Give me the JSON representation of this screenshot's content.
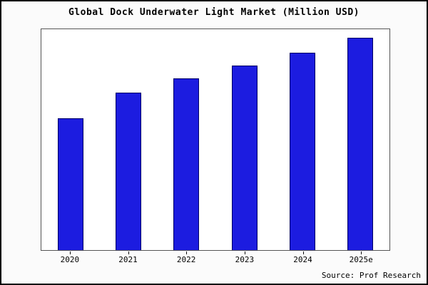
{
  "chart_data": {
    "type": "bar",
    "title": "Global Dock Underwater Light Market (Million USD)",
    "categories": [
      "2020",
      "2021",
      "2022",
      "2023",
      "2024",
      "2025e"
    ],
    "values": [
      62,
      74,
      81,
      87,
      93,
      100
    ],
    "ylim": [
      0,
      104
    ],
    "xlabel": "",
    "ylabel": "",
    "grid": false,
    "legend": false,
    "y_axis_tick_labels_visible": false
  },
  "source": "Source: Prof Research",
  "colors": {
    "bar_fill": "#1c1ce0",
    "bar_border": "#000066",
    "frame_border": "#000000",
    "plot_border": "#555555",
    "background": "#fbfbfb",
    "plot_background": "#ffffff"
  }
}
